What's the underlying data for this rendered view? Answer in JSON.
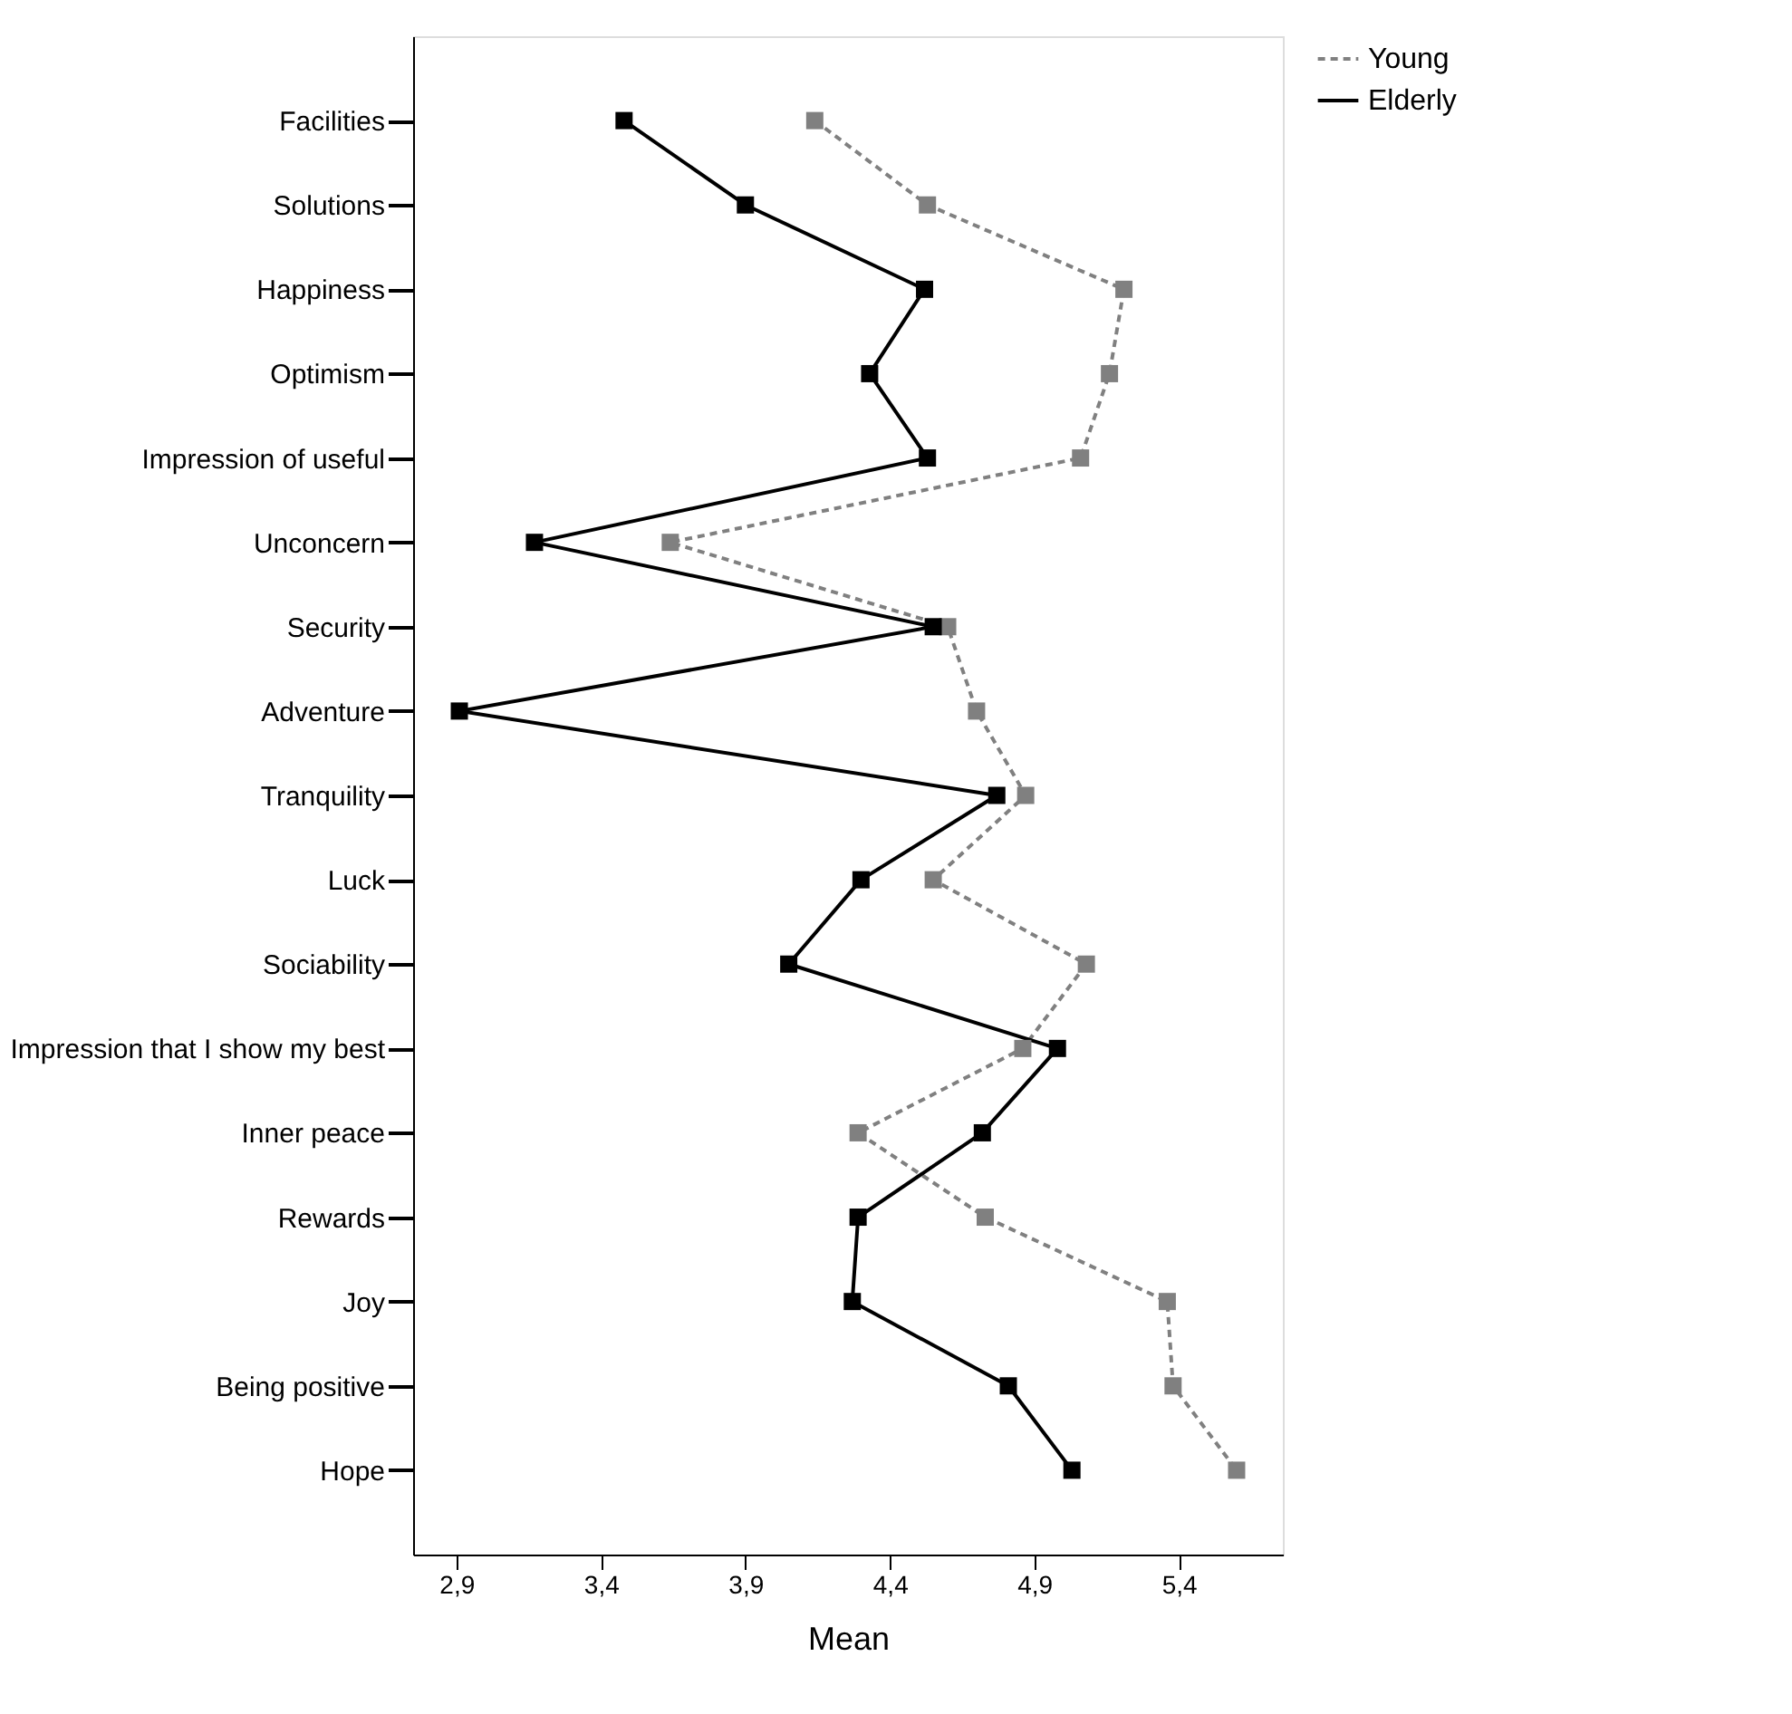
{
  "chart_data": {
    "type": "line",
    "orientation": "horizontal",
    "xlabel": "Mean",
    "categories": [
      "Facilities",
      "Solutions",
      "Happiness",
      "Optimism",
      "Impression of useful",
      "Unconcern",
      "Security",
      "Adventure",
      "Tranquility",
      "Luck",
      "Sociability",
      "Impression that I show my best",
      "Inner peace",
      "Rewards",
      "Joy",
      "Being positive",
      "Hope"
    ],
    "series": [
      {
        "name": "Young",
        "color": "#808080",
        "line_style": "dashed",
        "values": [
          4.14,
          4.53,
          5.21,
          5.16,
          5.06,
          3.64,
          4.6,
          4.7,
          4.87,
          4.55,
          5.08,
          4.86,
          4.29,
          4.73,
          5.36,
          5.38,
          5.6
        ]
      },
      {
        "name": "Elderly",
        "color": "#000000",
        "line_style": "solid",
        "values": [
          3.48,
          3.9,
          4.52,
          4.33,
          4.53,
          3.17,
          4.55,
          2.91,
          4.77,
          4.3,
          4.05,
          4.98,
          4.72,
          4.29,
          4.27,
          4.81,
          5.03
        ]
      }
    ],
    "xlim": [
      2.75,
      5.76
    ],
    "xticks": [
      {
        "value": 2.9,
        "label": "2,9"
      },
      {
        "value": 3.4,
        "label": "3,4"
      },
      {
        "value": 3.9,
        "label": "3,9"
      },
      {
        "value": 4.4,
        "label": "4,4"
      },
      {
        "value": 4.9,
        "label": "4,9"
      },
      {
        "value": 5.4,
        "label": "5,4"
      }
    ],
    "marker": "square",
    "grid": false,
    "legend": "top right"
  }
}
